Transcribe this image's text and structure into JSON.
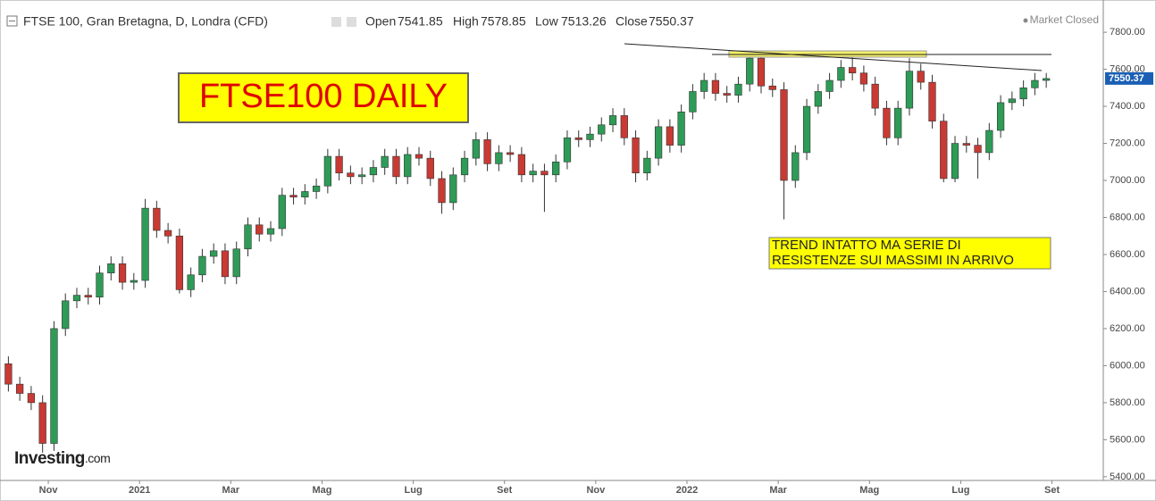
{
  "chart_data": {
    "type": "candlestick",
    "title": "FTSE 100, Gran Bretagna, D, Londra (CFD)",
    "ohlc_header": {
      "open_label": "Open",
      "open": "7541.85",
      "high_label": "High",
      "high": "7578.85",
      "low_label": "Low",
      "low": "7513.26",
      "close_label": "Close",
      "close": "7550.37"
    },
    "status": "Market Closed",
    "annotation_title": "FTSE100 DAILY",
    "annotation_note": [
      "TREND INTATTO MA SERIE DI",
      "RESISTENZE SUI MASSIMI IN ARRIVO"
    ],
    "logo": [
      "Investing",
      ".com"
    ],
    "up_color": "#2e9b57",
    "down_color": "#c83a33",
    "xlim": [
      -0.5,
      96
    ],
    "xticks": [
      {
        "value": 3.5,
        "label": "Nov"
      },
      {
        "value": 11.5,
        "label": "2021"
      },
      {
        "value": 19.5,
        "label": "Mar"
      },
      {
        "value": 27.5,
        "label": "Mag"
      },
      {
        "value": 35.5,
        "label": "Lug"
      },
      {
        "value": 43.5,
        "label": "Set"
      },
      {
        "value": 51.5,
        "label": "Nov"
      },
      {
        "value": 59.5,
        "label": "2022"
      },
      {
        "value": 67.5,
        "label": "Mar"
      },
      {
        "value": 75.5,
        "label": "Mag"
      },
      {
        "value": 83.5,
        "label": "Lug"
      },
      {
        "value": 91.5,
        "label": "Set"
      }
    ],
    "ylim": [
      5380,
      7950
    ],
    "yticks": [
      {
        "value": 5400,
        "label": "5400.00"
      },
      {
        "value": 5600,
        "label": "5600.00"
      },
      {
        "value": 5800,
        "label": "5800.00"
      },
      {
        "value": 6000,
        "label": "6000.00"
      },
      {
        "value": 6200,
        "label": "6200.00"
      },
      {
        "value": 6400,
        "label": "6400.00"
      },
      {
        "value": 6600,
        "label": "6600.00"
      },
      {
        "value": 6800,
        "label": "6800.00"
      },
      {
        "value": 7000,
        "label": "7000.00"
      },
      {
        "value": 7200,
        "label": "7200.00"
      },
      {
        "value": 7400,
        "label": "7400.00"
      },
      {
        "value": 7600,
        "label": "7600.00"
      },
      {
        "value": 7800,
        "label": "7800.00"
      }
    ],
    "open": [
      6010,
      5900,
      5850,
      5800,
      5580,
      6200,
      6350,
      6380,
      6370,
      6500,
      6550,
      6450,
      6460,
      6850,
      6730,
      6700,
      6410,
      6490,
      6590,
      6620,
      6480,
      6630,
      6760,
      6710,
      6740,
      6920,
      6910,
      6940,
      6970,
      7130,
      7040,
      7020,
      7030,
      7070,
      7130,
      7020,
      7140,
      7120,
      7010,
      6880,
      7030,
      7120,
      7220,
      7090,
      7150,
      7140,
      7030,
      7050,
      7030,
      7100,
      7230,
      7220,
      7250,
      7300,
      7350,
      7230,
      7040,
      7120,
      7290,
      7190,
      7370,
      7480,
      7540,
      7470,
      7460,
      7520,
      7660,
      7510,
      7490,
      7000,
      7150,
      7400,
      7480,
      7540,
      7610,
      7580,
      7520,
      7390,
      7230,
      7390,
      7590,
      7530,
      7320,
      7010,
      7200,
      7190,
      7150,
      7270,
      7420,
      7440,
      7500,
      7540
    ],
    "high": [
      6050,
      5940,
      5890,
      5840,
      6240,
      6390,
      6420,
      6420,
      6540,
      6590,
      6590,
      6500,
      6900,
      6890,
      6770,
      6740,
      6530,
      6630,
      6660,
      6660,
      6670,
      6800,
      6800,
      6780,
      6960,
      6960,
      6980,
      7010,
      7170,
      7170,
      7080,
      7070,
      7110,
      7170,
      7170,
      7180,
      7180,
      7160,
      7050,
      7070,
      7160,
      7260,
      7260,
      7190,
      7190,
      7180,
      7090,
      7090,
      7140,
      7270,
      7270,
      7290,
      7340,
      7390,
      7390,
      7270,
      7160,
      7330,
      7330,
      7410,
      7520,
      7580,
      7580,
      7510,
      7560,
      7690,
      7700,
      7550,
      7530,
      7190,
      7440,
      7520,
      7580,
      7650,
      7670,
      7620,
      7560,
      7430,
      7430,
      7660,
      7630,
      7570,
      7360,
      7240,
      7240,
      7230,
      7310,
      7460,
      7480,
      7540,
      7580,
      7580
    ],
    "low": [
      5860,
      5810,
      5760,
      5530,
      5540,
      6160,
      6310,
      6330,
      6330,
      6460,
      6410,
      6410,
      6420,
      6690,
      6660,
      6390,
      6370,
      6450,
      6550,
      6440,
      6440,
      6590,
      6670,
      6670,
      6700,
      6870,
      6870,
      6900,
      6930,
      7000,
      6980,
      6980,
      6990,
      7030,
      6980,
      6980,
      7080,
      6970,
      6820,
      6840,
      6990,
      7080,
      7050,
      7050,
      7100,
      6990,
      6990,
      6830,
      6990,
      7060,
      7180,
      7180,
      7210,
      7260,
      7190,
      6990,
      7000,
      7080,
      7150,
      7150,
      7330,
      7440,
      7430,
      7420,
      7420,
      7480,
      7470,
      7450,
      6790,
      6960,
      7110,
      7360,
      7440,
      7500,
      7540,
      7480,
      7350,
      7190,
      7190,
      7350,
      7490,
      7280,
      6990,
      6990,
      7150,
      7010,
      7110,
      7230,
      7380,
      7400,
      7460,
      7500
    ],
    "close": [
      5900,
      5850,
      5800,
      5580,
      6200,
      6350,
      6380,
      6370,
      6500,
      6550,
      6450,
      6460,
      6850,
      6730,
      6700,
      6410,
      6490,
      6590,
      6620,
      6480,
      6630,
      6760,
      6710,
      6740,
      6920,
      6910,
      6940,
      6970,
      7130,
      7040,
      7020,
      7030,
      7070,
      7130,
      7020,
      7140,
      7120,
      7010,
      6880,
      7030,
      7120,
      7220,
      7090,
      7150,
      7140,
      7030,
      7050,
      7030,
      7100,
      7230,
      7220,
      7250,
      7300,
      7350,
      7230,
      7040,
      7120,
      7290,
      7190,
      7370,
      7480,
      7540,
      7470,
      7460,
      7520,
      7660,
      7510,
      7490,
      7000,
      7150,
      7400,
      7480,
      7540,
      7610,
      7580,
      7520,
      7390,
      7230,
      7390,
      7590,
      7530,
      7320,
      7010,
      7200,
      7190,
      7150,
      7270,
      7420,
      7440,
      7500,
      7540,
      7550
    ]
  }
}
